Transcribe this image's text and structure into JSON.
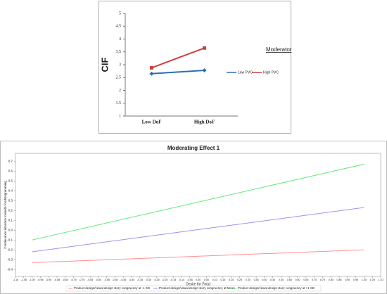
{
  "chart_data": [
    {
      "type": "line",
      "ylabel": "CIF",
      "categories": [
        "Low DoF",
        "High DoF"
      ],
      "ylim": [
        1,
        5
      ],
      "yticks": [
        1,
        1.5,
        2,
        2.5,
        3,
        3.5,
        4,
        4.5,
        5
      ],
      "legend_title": "Moderator",
      "legend": "right",
      "series": [
        {
          "name": "Low PVC",
          "color": "#2a6fb5",
          "marker": "diamond",
          "values": [
            2.65,
            2.78
          ]
        },
        {
          "name": "High PVC",
          "color": "#c9413f",
          "marker": "square",
          "values": [
            2.88,
            3.65
          ]
        }
      ]
    },
    {
      "type": "line",
      "title": "Moderating Effect 1",
      "xlabel": "Desire for Food",
      "ylabel": "Continuance intention towards foodstagramming",
      "x": [
        -1,
        1
      ],
      "xlim": [
        -1.1,
        1.1
      ],
      "ylim": [
        -0.47,
        0.78
      ],
      "xticks": [
        {
          "value": -1.1,
          "label": "-1.10"
        },
        -1.05,
        {
          "value": -1,
          "label": "-1.00"
        },
        -0.95,
        {
          "value": -0.9,
          "label": "-0.90"
        },
        -0.85,
        {
          "value": -0.8,
          "label": "-0.80"
        },
        -0.75,
        {
          "value": -0.7,
          "label": "-0.70"
        },
        -0.65,
        {
          "value": -0.6,
          "label": "-0.60"
        },
        -0.55,
        {
          "value": -0.5,
          "label": "-0.50"
        },
        -0.45,
        {
          "value": -0.4,
          "label": "-0.40"
        },
        -0.35,
        {
          "value": -0.3,
          "label": "-0.30"
        },
        -0.25,
        {
          "value": -0.2,
          "label": "-0.20"
        },
        -0.15,
        {
          "value": -0.1,
          "label": "-0.10"
        },
        -0.05,
        {
          "value": 0,
          "label": "0.00"
        },
        0.05,
        {
          "value": 0.1,
          "label": "0.10"
        },
        0.15,
        {
          "value": 0.2,
          "label": "0.20"
        },
        0.25,
        {
          "value": 0.3,
          "label": "0.30"
        },
        0.35,
        {
          "value": 0.4,
          "label": "0.40"
        },
        0.45,
        {
          "value": 0.5,
          "label": "0.50"
        },
        0.55,
        {
          "value": 0.6,
          "label": "0.60"
        },
        0.65,
        {
          "value": 0.7,
          "label": "0.70"
        },
        0.75,
        {
          "value": 0.8,
          "label": "0.80"
        },
        0.85,
        {
          "value": 0.9,
          "label": "0.90"
        },
        0.95,
        {
          "value": 1,
          "label": "1.00"
        },
        1.05,
        {
          "value": 1.1,
          "label": "1.10"
        }
      ],
      "yticks": [
        0.7,
        0.6,
        0.5,
        0.4,
        0.3,
        0.2,
        0.1,
        {
          "value": 0,
          "label": "0.0"
        },
        -0.1,
        -0.2,
        -0.3,
        -0.4
      ],
      "legend": "bottom",
      "series": [
        {
          "name": "Product design/visual design story congruency at -1 SD",
          "color": "#ff8f8f",
          "values": [
            -0.33,
            -0.2
          ]
        },
        {
          "name": "Product design/visual design story congruency at Mean",
          "color": "#9d92ee",
          "values": [
            -0.22,
            0.23
          ]
        },
        {
          "name": "Product design/visual design story congruency at +1 SD",
          "color": "#5fe87a",
          "values": [
            -0.1,
            0.67
          ]
        }
      ]
    }
  ]
}
